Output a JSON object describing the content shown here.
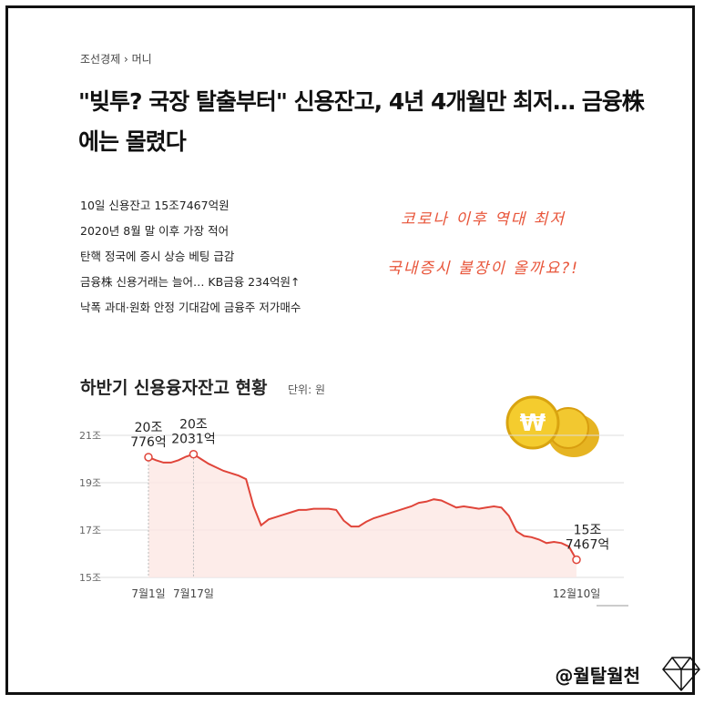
{
  "breadcrumb": "조선경제 › 머니",
  "headline": "\"빚투? 국장 탈출부터\" 신용잔고, 4년 4개월만 최저… 금융株에는 몰렸다",
  "bullets": [
    "10일 신용잔고 15조7467억원",
    "2020년 8월 말 이후 가장 적어",
    "탄핵 정국에 증시 상승 베팅 급감",
    "금융株 신용거래는 늘어… KB금융 234억원↑",
    "낙폭 과대·원화 안정 기대감에 금융주 저가매수"
  ],
  "notes": [
    "코로나 이후 역대 최저",
    "국내증시 불장이 올까요?!"
  ],
  "footer": "@월탈월천",
  "chart_data": {
    "type": "line",
    "title": "하반기 신용융자잔고 현황",
    "unit": "단위: 원",
    "categories": [
      "7월1일",
      null,
      null,
      null,
      null,
      null,
      "7월17일",
      null,
      null,
      null,
      null,
      null,
      null,
      null,
      null,
      null,
      null,
      null,
      null,
      null,
      null,
      null,
      null,
      null,
      null,
      null,
      null,
      null,
      null,
      null,
      null,
      null,
      null,
      null,
      null,
      null,
      null,
      null,
      null,
      null,
      null,
      null,
      null,
      null,
      null,
      null,
      null,
      null,
      null,
      null,
      null,
      null,
      null,
      null,
      null,
      null,
      null,
      "12월10일"
    ],
    "series": [
      {
        "name": "신용융자잔고",
        "color": "#e0453a",
        "values": [
          20.0776,
          19.95,
          19.85,
          19.85,
          19.95,
          20.1,
          20.2031,
          20.0,
          19.8,
          19.65,
          19.5,
          19.4,
          19.3,
          19.15,
          18.0,
          17.2,
          17.45,
          17.55,
          17.65,
          17.75,
          17.85,
          17.85,
          17.9,
          17.9,
          17.9,
          17.85,
          17.4,
          17.15,
          17.15,
          17.35,
          17.5,
          17.6,
          17.7,
          17.8,
          17.9,
          18.0,
          18.15,
          18.2,
          18.3,
          18.25,
          18.1,
          17.95,
          18.0,
          17.95,
          17.9,
          17.95,
          18.0,
          17.95,
          17.6,
          16.95,
          16.75,
          16.7,
          16.6,
          16.45,
          16.5,
          16.45,
          16.3,
          15.7467
        ],
        "value_labels": [
          [
            "20조",
            "776억"
          ],
          null,
          null,
          null,
          null,
          null,
          [
            "20조",
            "2031억"
          ],
          null,
          null,
          null,
          null,
          null,
          null,
          null,
          null,
          null,
          null,
          null,
          null,
          null,
          null,
          null,
          null,
          null,
          null,
          null,
          null,
          null,
          null,
          null,
          null,
          null,
          null,
          null,
          null,
          null,
          null,
          null,
          null,
          null,
          null,
          null,
          null,
          null,
          null,
          null,
          null,
          null,
          null,
          null,
          null,
          null,
          null,
          null,
          null,
          null,
          null,
          [
            "15조",
            "7467억"
          ]
        ]
      }
    ],
    "ylim": [
      15,
      22
    ],
    "yticks": [
      {
        "value": 15,
        "label": "15조"
      },
      {
        "value": 17,
        "label": "17조"
      },
      {
        "value": 19,
        "label": "19조"
      },
      {
        "value": 21,
        "label": "21조"
      }
    ],
    "grid": true
  }
}
